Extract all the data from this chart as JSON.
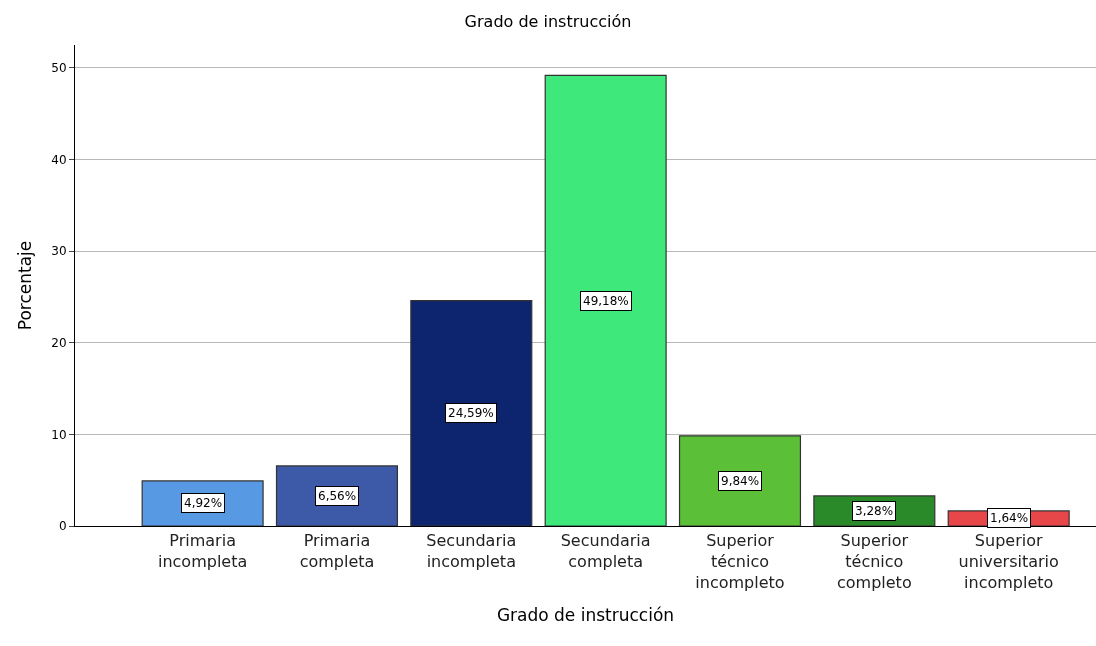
{
  "chart_data": {
    "type": "bar",
    "title": "Grado de instrucción",
    "xlabel": "Grado de instrucción",
    "ylabel": "Porcentaje",
    "categories": [
      "Primaria incompleta",
      "Primaria completa",
      "Secundaria incompleta",
      "Secundaria completa",
      "Superior técnico incompleto",
      "Superior técnico completo",
      "Superior universitario incompleto"
    ],
    "values": [
      4.92,
      6.56,
      24.59,
      49.18,
      9.84,
      3.28,
      1.64
    ],
    "value_labels": [
      "4,92%",
      "6,56%",
      "24,59%",
      "49,18%",
      "9,84%",
      "3,28%",
      "1,64%"
    ],
    "colors": [
      "#5799e3",
      "#3c5aa8",
      "#0d256e",
      "#3fe87b",
      "#5cbf38",
      "#2a8a2a",
      "#e8474a"
    ],
    "ylim": [
      0,
      52.5
    ],
    "yticks": [
      0,
      10,
      20,
      30,
      40,
      50
    ],
    "grid": "y"
  }
}
